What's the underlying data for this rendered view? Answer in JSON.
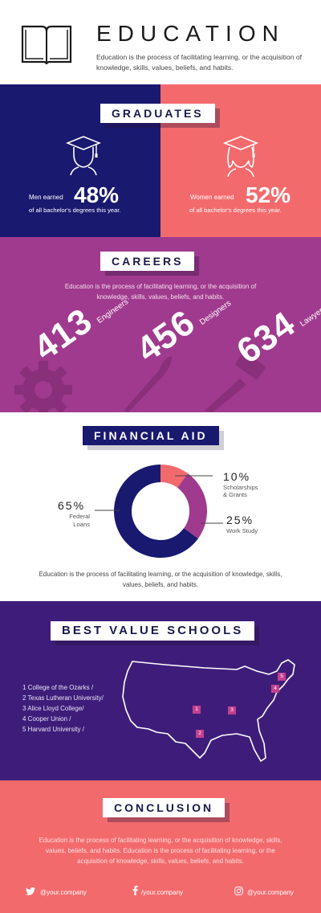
{
  "header": {
    "title": "EDUCATION",
    "description": "Education is the process of facilitating learning, or the acquisition of knowledge, skills, values, beliefs, and habits.",
    "icon": "open-book-icon"
  },
  "graduates": {
    "title": "GRADUATES",
    "colors": {
      "left": "#191970",
      "right": "#f36a6d"
    },
    "men": {
      "label": "Men earned",
      "percent": "48%",
      "sub": "of all bachelor's degrees this year.",
      "icon": "male-graduate-icon"
    },
    "women": {
      "label": "Women  earned",
      "percent": "52%",
      "sub": "of all bachelor's degrees this year.",
      "icon": "female-graduate-icon"
    }
  },
  "careers": {
    "title": "CAREERS",
    "color": "#a03a8e",
    "description": "Education is the process of facilitating learning, or the acquisition of knowledge, skills, values, beliefs, and habits.",
    "stats": [
      {
        "value": "413",
        "label": "Engineers",
        "icon": "gear-icon"
      },
      {
        "value": "456",
        "label": "Designers",
        "icon": "paintbrush-icon"
      },
      {
        "value": "634",
        "label": "Lawyers",
        "icon": "gavel-icon"
      }
    ]
  },
  "financial_aid": {
    "title": "FINANCIAL AID",
    "segments": [
      {
        "percent": "10%",
        "label_line1": "Scholarships",
        "label_line2": "& Grants",
        "value": 10,
        "color": "#f36a6d"
      },
      {
        "percent": "25%",
        "label_line1": "Work Study",
        "label_line2": "",
        "value": 25,
        "color": "#a03a8e"
      },
      {
        "percent": "65%",
        "label_line1": "Federal",
        "label_line2": "Loans",
        "value": 65,
        "color": "#191970"
      }
    ],
    "description": "Education is the process of facilitating learning, or the acquisition of knowledge, skills, values, beliefs, and habits."
  },
  "schools": {
    "title": "BEST VALUE SCHOOLS",
    "color": "#3e1d7a",
    "list": [
      "1 College of the Ozarks /",
      "2 Texas Lutheran University/",
      "3 Alice Lloyd College/",
      "4 Cooper Union /",
      "5 Harvard University /"
    ],
    "markers": [
      "1",
      "2",
      "3",
      "4",
      "5"
    ],
    "map_icon": "usa-map-outline"
  },
  "conclusion": {
    "title": "CONCLUSION",
    "color": "#f36a6d",
    "description": "Education is the process of facilitating learning, or the acquisition of knowledge, skills, values, beliefs, and habits. Education is the process of facilitating learning, or the acquisition of knowledge, skills, values, beliefs, and habits.",
    "social": [
      {
        "icon": "twitter-icon",
        "handle": "@your.company"
      },
      {
        "icon": "facebook-icon",
        "handle": "/your.company"
      },
      {
        "icon": "instagram-icon",
        "handle": "@your.company"
      }
    ]
  }
}
